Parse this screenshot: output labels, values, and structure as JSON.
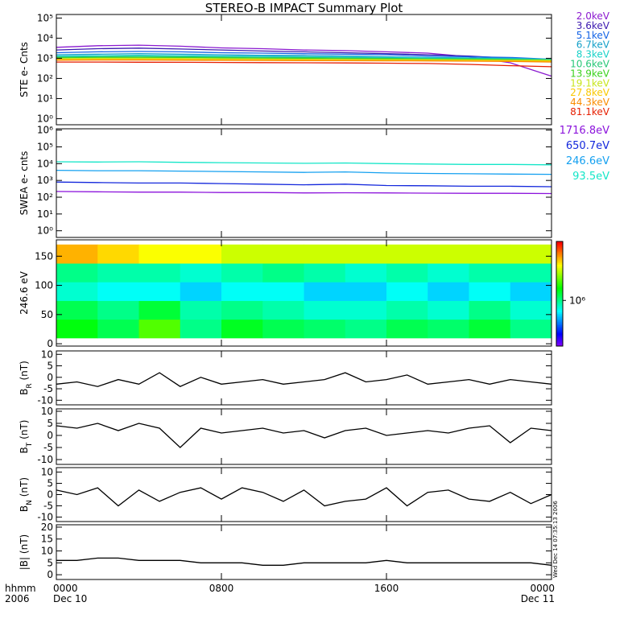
{
  "chart_data": [
    {
      "type": "line",
      "title": "STEREO-B IMPACT Summary Plot",
      "ylabel": "STE e- Cnts",
      "yscale": "log",
      "xlim": [
        0,
        24
      ],
      "ylim": [
        0.5,
        150000
      ],
      "yticks": [
        {
          "value": 1,
          "label": "10⁰"
        },
        {
          "value": 10,
          "label": "10¹"
        },
        {
          "value": 100,
          "label": "10²"
        },
        {
          "value": 1000,
          "label": "10³"
        },
        {
          "value": 10000,
          "label": "10⁴"
        },
        {
          "value": 100000,
          "label": "10⁵"
        }
      ],
      "x": [
        0,
        2,
        4,
        6,
        8,
        10,
        12,
        14,
        16,
        18,
        20,
        22,
        24
      ],
      "series": [
        {
          "name": "2.0keV",
          "color": "#8b1ad0",
          "values": [
            3500,
            4200,
            4500,
            4000,
            3300,
            3000,
            2600,
            2400,
            2100,
            1800,
            1200,
            600,
            130
          ]
        },
        {
          "name": "3.6keV",
          "color": "#3c1ab0",
          "values": [
            2600,
            3000,
            3200,
            2900,
            2600,
            2300,
            2100,
            1900,
            1700,
            1500,
            1300,
            1000,
            700
          ]
        },
        {
          "name": "5.1keV",
          "color": "#1464e6",
          "values": [
            1900,
            2100,
            2200,
            2100,
            1900,
            1800,
            1700,
            1600,
            1500,
            1300,
            1200,
            1100,
            900
          ]
        },
        {
          "name": "6.7keV",
          "color": "#14a0c8",
          "values": [
            1500,
            1600,
            1700,
            1600,
            1500,
            1400,
            1400,
            1300,
            1200,
            1100,
            1050,
            1000,
            900
          ]
        },
        {
          "name": "8.3keV",
          "color": "#19d2c8",
          "values": [
            1300,
            1350,
            1400,
            1350,
            1300,
            1250,
            1200,
            1150,
            1100,
            1050,
            1000,
            950,
            900
          ]
        },
        {
          "name": "10.6keV",
          "color": "#28c878",
          "values": [
            1150,
            1200,
            1250,
            1200,
            1150,
            1100,
            1100,
            1050,
            1000,
            950,
            950,
            900,
            850
          ]
        },
        {
          "name": "13.9keV",
          "color": "#3cd21e",
          "values": [
            1050,
            1100,
            1100,
            1100,
            1050,
            1000,
            1000,
            950,
            950,
            900,
            900,
            850,
            800
          ]
        },
        {
          "name": "19.1keV",
          "color": "#c8e61e",
          "values": [
            950,
            1000,
            1000,
            980,
            950,
            920,
            900,
            880,
            860,
            850,
            830,
            800,
            780
          ]
        },
        {
          "name": "27.8keV",
          "color": "#fac800",
          "values": [
            880,
            900,
            900,
            880,
            860,
            840,
            820,
            800,
            790,
            780,
            760,
            740,
            720
          ]
        },
        {
          "name": "44.3keV",
          "color": "#fa8c00",
          "values": [
            800,
            820,
            820,
            800,
            790,
            780,
            770,
            760,
            750,
            740,
            720,
            700,
            650
          ]
        },
        {
          "name": "81.1keV",
          "color": "#e61e00",
          "values": [
            650,
            650,
            640,
            630,
            620,
            610,
            600,
            590,
            570,
            550,
            500,
            430,
            380
          ]
        }
      ]
    },
    {
      "type": "line",
      "ylabel": "SWEA e- cnts",
      "yscale": "log",
      "xlim": [
        0,
        24
      ],
      "ylim": [
        0.4,
        1200000
      ],
      "yticks": [
        {
          "value": 1,
          "label": "10⁰"
        },
        {
          "value": 10,
          "label": "10¹"
        },
        {
          "value": 100,
          "label": "10²"
        },
        {
          "value": 1000,
          "label": "10³"
        },
        {
          "value": 10000,
          "label": "10⁴"
        },
        {
          "value": 100000,
          "label": "10⁵"
        },
        {
          "value": 1000000,
          "label": "10⁶"
        }
      ],
      "x": [
        0,
        2,
        4,
        6,
        8,
        10,
        12,
        14,
        16,
        18,
        20,
        22,
        24
      ],
      "series": [
        {
          "name": "1716.8eV",
          "color": "#8c14dc",
          "values": [
            220,
            210,
            200,
            200,
            190,
            190,
            180,
            185,
            180,
            175,
            170,
            170,
            165
          ]
        },
        {
          "name": "650.7eV",
          "color": "#1428dc",
          "values": [
            800,
            750,
            700,
            700,
            650,
            600,
            550,
            600,
            500,
            480,
            450,
            450,
            420
          ]
        },
        {
          "name": "246.6eV",
          "color": "#14a0f0",
          "values": [
            4000,
            3800,
            3800,
            3600,
            3400,
            3200,
            3000,
            3200,
            2800,
            2600,
            2500,
            2400,
            2300
          ]
        },
        {
          "name": "93.5eV",
          "color": "#14e6c8",
          "values": [
            13000,
            12500,
            13000,
            12000,
            11500,
            11000,
            10500,
            11000,
            10000,
            9500,
            9000,
            9000,
            8500
          ]
        }
      ]
    },
    {
      "type": "heatmap",
      "ylabel": "246.6 eV",
      "xlim": [
        0,
        24
      ],
      "ylim": [
        -4,
        178
      ],
      "yticks": [
        0,
        50,
        100,
        150
      ],
      "x_bins": [
        0,
        2,
        4,
        6,
        8,
        10,
        12,
        14,
        16,
        18,
        20,
        22,
        24
      ],
      "y_bins": [
        10,
        42,
        74,
        106,
        138,
        170
      ],
      "z": [
        [
          1500000,
          1200000,
          2000000,
          1000000,
          1400000,
          1200000,
          1100000,
          1000000,
          1200000,
          1100000,
          1300000,
          1000000
        ],
        [
          1200000,
          1000000,
          1300000,
          900000,
          1000000,
          900000,
          800000,
          800000,
          900000,
          800000,
          1000000,
          800000
        ],
        [
          800000,
          700000,
          700000,
          600000,
          700000,
          700000,
          600000,
          600000,
          700000,
          600000,
          700000,
          600000
        ],
        [
          1000000,
          900000,
          900000,
          800000,
          900000,
          1000000,
          900000,
          800000,
          900000,
          800000,
          900000,
          900000
        ],
        [
          4500000,
          4000000,
          3500000,
          3500000,
          3000000,
          3000000,
          3000000,
          3000000,
          3000000,
          3000000,
          3000000,
          3000000
        ]
      ],
      "zscale": "log",
      "zlim": [
        200000,
        8000000
      ],
      "zticks": [
        {
          "value": 1000000,
          "label": "10⁶"
        }
      ]
    },
    {
      "type": "line",
      "ylabel": "B",
      "ylabel_sub": "R",
      "ylabel_unit": "(nT)",
      "xlim": [
        0,
        24
      ],
      "ylim": [
        -12,
        11.5
      ],
      "yticks": [
        -10,
        -5,
        0,
        5,
        10
      ],
      "x": [
        0,
        1,
        2,
        3,
        4,
        5,
        6,
        7,
        8,
        9,
        10,
        11,
        12,
        13,
        14,
        15,
        16,
        17,
        18,
        19,
        20,
        21,
        22,
        23,
        24
      ],
      "series": [
        {
          "color": "#000000",
          "values": [
            -3,
            -2,
            -4,
            -1,
            -3,
            2,
            -4,
            0,
            -3,
            -2,
            -1,
            -3,
            -2,
            -1,
            2,
            -2,
            -1,
            1,
            -3,
            -2,
            -1,
            -3,
            -1,
            -2,
            -3
          ]
        }
      ]
    },
    {
      "type": "line",
      "ylabel": "B",
      "ylabel_sub": "T",
      "ylabel_unit": "(nT)",
      "xlim": [
        0,
        24
      ],
      "ylim": [
        -12,
        11
      ],
      "yticks": [
        -10,
        -5,
        0,
        5,
        10
      ],
      "x": [
        0,
        1,
        2,
        3,
        4,
        5,
        6,
        7,
        8,
        9,
        10,
        11,
        12,
        13,
        14,
        15,
        16,
        17,
        18,
        19,
        20,
        21,
        22,
        23,
        24
      ],
      "series": [
        {
          "color": "#000000",
          "values": [
            4,
            3,
            5,
            2,
            5,
            3,
            -5,
            3,
            1,
            2,
            3,
            1,
            2,
            -1,
            2,
            3,
            0,
            1,
            2,
            1,
            3,
            4,
            -3,
            3,
            2
          ]
        }
      ]
    },
    {
      "type": "line",
      "ylabel": "B",
      "ylabel_sub": "N",
      "ylabel_unit": "(nT)",
      "xlim": [
        0,
        24
      ],
      "ylim": [
        -12,
        12
      ],
      "yticks": [
        -10,
        -5,
        0,
        5,
        10
      ],
      "x": [
        0,
        1,
        2,
        3,
        4,
        5,
        6,
        7,
        8,
        9,
        10,
        11,
        12,
        13,
        14,
        15,
        16,
        17,
        18,
        19,
        20,
        21,
        22,
        23,
        24
      ],
      "series": [
        {
          "color": "#000000",
          "values": [
            2,
            0,
            3,
            -5,
            2,
            -3,
            1,
            3,
            -2,
            3,
            1,
            -3,
            2,
            -5,
            -3,
            -2,
            3,
            -5,
            1,
            2,
            -2,
            -3,
            1,
            -4,
            0
          ]
        }
      ]
    },
    {
      "type": "line",
      "ylabel": "|B|",
      "ylabel_unit": "(nT)",
      "xlim": [
        0,
        24
      ],
      "ylim": [
        -2,
        21
      ],
      "yticks": [
        0,
        5,
        10,
        15,
        20
      ],
      "x": [
        0,
        1,
        2,
        3,
        4,
        5,
        6,
        7,
        8,
        9,
        10,
        11,
        12,
        13,
        14,
        15,
        16,
        17,
        18,
        19,
        20,
        21,
        22,
        23,
        24
      ],
      "series": [
        {
          "color": "#000000",
          "values": [
            6,
            6,
            7,
            7,
            6,
            6,
            6,
            5,
            5,
            5,
            4,
            4,
            5,
            5,
            5,
            5,
            6,
            5,
            5,
            5,
            5,
            5,
            5,
            5,
            4
          ]
        }
      ],
      "xticks": [
        {
          "value": 0,
          "label": "0000"
        },
        {
          "value": 8,
          "label": "0800"
        },
        {
          "value": 16,
          "label": "1600"
        },
        {
          "value": 24,
          "label": "0000"
        }
      ],
      "xtick_dates": [
        "Dec 10",
        null,
        null,
        "Dec 11"
      ],
      "x_label": "hhmm",
      "x_sublabel": "2006",
      "annotation": "Wed Dec 14 07:35:13 2006"
    }
  ]
}
